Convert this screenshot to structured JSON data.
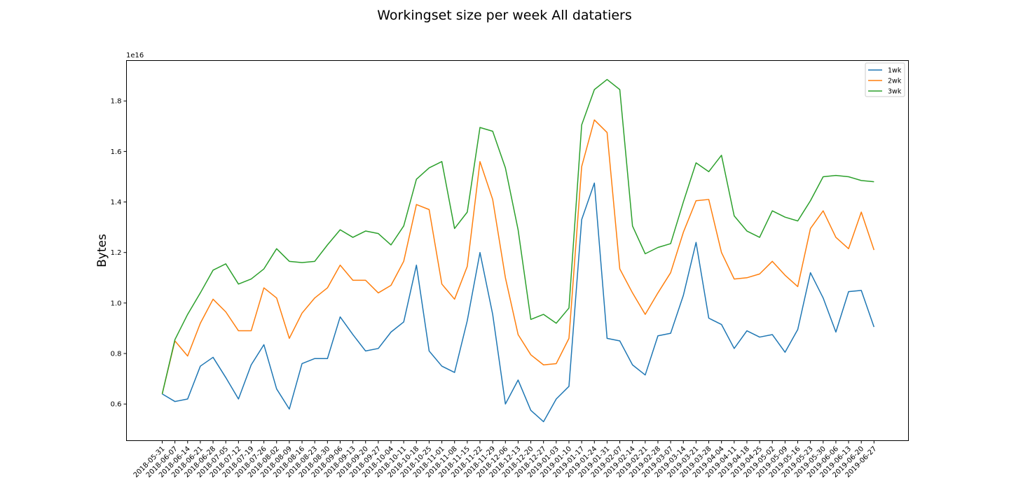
{
  "chart_data": {
    "type": "line",
    "title": "Workingset size per week All datatiers",
    "xlabel": "",
    "ylabel": "Bytes",
    "y_offset_text": "1e16",
    "y_scale": 1e+16,
    "ylim": [
      0.455,
      1.96
    ],
    "yticks": [
      0.6,
      0.8,
      1.0,
      1.2,
      1.4,
      1.6,
      1.8
    ],
    "ytick_labels": [
      "0.6",
      "0.8",
      "1.0",
      "1.2",
      "1.4",
      "1.6",
      "1.8"
    ],
    "grid": false,
    "legend_position": "top-right",
    "x": [
      "2018-05-31",
      "2018-06-07",
      "2018-06-14",
      "2018-06-21",
      "2018-06-28",
      "2018-07-05",
      "2018-07-12",
      "2018-07-19",
      "2018-07-26",
      "2018-08-02",
      "2018-08-09",
      "2018-08-16",
      "2018-08-23",
      "2018-08-30",
      "2018-09-06",
      "2018-09-13",
      "2018-09-20",
      "2018-09-27",
      "2018-10-04",
      "2018-10-11",
      "2018-10-18",
      "2018-10-25",
      "2018-11-01",
      "2018-11-08",
      "2018-11-15",
      "2018-11-22",
      "2018-11-29",
      "2018-12-06",
      "2018-12-13",
      "2018-12-20",
      "2018-12-27",
      "2019-01-03",
      "2019-01-10",
      "2019-01-17",
      "2019-01-24",
      "2019-01-31",
      "2019-02-07",
      "2019-02-14",
      "2019-02-21",
      "2019-02-28",
      "2019-03-07",
      "2019-03-14",
      "2019-03-21",
      "2019-03-28",
      "2019-04-04",
      "2019-04-11",
      "2019-04-18",
      "2019-04-25",
      "2019-05-02",
      "2019-05-09",
      "2019-05-16",
      "2019-05-23",
      "2019-05-30",
      "2019-06-06",
      "2019-06-13",
      "2019-06-20",
      "2019-06-27"
    ],
    "series": [
      {
        "name": "1wk",
        "color": "#1f77b4",
        "values": [
          0.64,
          0.61,
          0.62,
          0.75,
          0.785,
          0.705,
          0.62,
          0.755,
          0.835,
          0.66,
          0.58,
          0.76,
          0.78,
          0.78,
          0.945,
          0.875,
          0.81,
          0.82,
          0.885,
          0.925,
          1.15,
          0.81,
          0.75,
          0.725,
          0.93,
          1.2,
          0.955,
          0.6,
          0.695,
          0.575,
          0.53,
          0.62,
          0.67,
          1.33,
          1.475,
          0.86,
          0.85,
          0.755,
          0.715,
          0.87,
          0.88,
          1.03,
          1.24,
          0.94,
          0.915,
          0.82,
          0.89,
          0.865,
          0.875,
          0.805,
          0.895,
          1.12,
          1.02,
          0.885,
          1.045,
          1.05,
          0.905
        ]
      },
      {
        "name": "2wk",
        "color": "#ff7f0e",
        "values": [
          0.64,
          0.85,
          0.79,
          0.92,
          1.015,
          0.965,
          0.89,
          0.89,
          1.06,
          1.02,
          0.86,
          0.96,
          1.02,
          1.06,
          1.15,
          1.09,
          1.09,
          1.04,
          1.07,
          1.165,
          1.39,
          1.37,
          1.075,
          1.015,
          1.145,
          1.56,
          1.41,
          1.1,
          0.875,
          0.795,
          0.755,
          0.76,
          0.86,
          1.54,
          1.725,
          1.675,
          1.135,
          1.04,
          0.955,
          1.04,
          1.12,
          1.28,
          1.405,
          1.41,
          1.2,
          1.095,
          1.1,
          1.115,
          1.165,
          1.11,
          1.065,
          1.295,
          1.365,
          1.26,
          1.215,
          1.36,
          1.21
        ]
      },
      {
        "name": "3wk",
        "color": "#2ca02c",
        "values": [
          0.64,
          0.855,
          0.955,
          1.04,
          1.13,
          1.155,
          1.075,
          1.095,
          1.135,
          1.215,
          1.165,
          1.16,
          1.165,
          1.23,
          1.29,
          1.26,
          1.285,
          1.275,
          1.23,
          1.305,
          1.49,
          1.535,
          1.56,
          1.295,
          1.36,
          1.695,
          1.68,
          1.535,
          1.29,
          0.935,
          0.955,
          0.92,
          0.98,
          1.705,
          1.845,
          1.885,
          1.845,
          1.305,
          1.195,
          1.22,
          1.235,
          1.4,
          1.555,
          1.52,
          1.585,
          1.345,
          1.285,
          1.26,
          1.365,
          1.34,
          1.325,
          1.405,
          1.5,
          1.505,
          1.5,
          1.485,
          1.48
        ]
      }
    ]
  }
}
